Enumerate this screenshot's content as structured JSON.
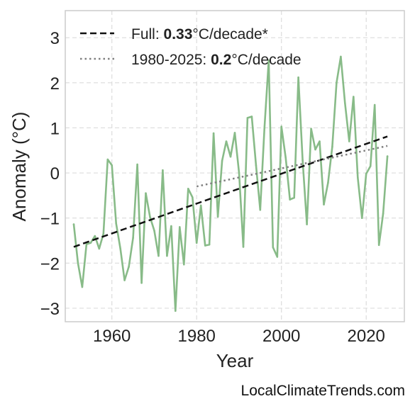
{
  "chart_data": {
    "type": "line",
    "title": "",
    "xlabel": "Year",
    "ylabel": "Anomaly (°C)",
    "xlim": [
      1949,
      2029
    ],
    "ylim": [
      -3.3,
      3.6
    ],
    "xticks": [
      1960,
      1980,
      2000,
      2020
    ],
    "yticks": [
      -3,
      -2,
      -1,
      0,
      1,
      2,
      3
    ],
    "grid": true,
    "legend_position": "top-left",
    "series": [
      {
        "color": "#88bb88",
        "x": [
          1951,
          1952,
          1953,
          1954,
          1955,
          1956,
          1957,
          1958,
          1959,
          1960,
          1961,
          1962,
          1963,
          1964,
          1965,
          1966,
          1967,
          1968,
          1969,
          1970,
          1971,
          1972,
          1973,
          1974,
          1975,
          1976,
          1977,
          1978,
          1979,
          1980,
          1981,
          1982,
          1983,
          1984,
          1985,
          1986,
          1987,
          1988,
          1989,
          1990,
          1991,
          1992,
          1993,
          1994,
          1995,
          1996,
          1997,
          1998,
          1999,
          2000,
          2001,
          2002,
          2003,
          2004,
          2005,
          2006,
          2007,
          2008,
          2009,
          2010,
          2011,
          2012,
          2013,
          2014,
          2015,
          2016,
          2017,
          2018,
          2019,
          2020,
          2021,
          2022,
          2023,
          2024,
          2025
        ],
        "y": [
          -1.14,
          -2.0,
          -2.53,
          -1.58,
          -1.55,
          -1.4,
          -1.68,
          -1.35,
          0.3,
          0.17,
          -1.12,
          -1.68,
          -2.38,
          -2.08,
          -1.44,
          0.19,
          -2.44,
          -0.45,
          -0.98,
          -1.28,
          -1.84,
          0.06,
          -1.84,
          -1.18,
          -3.06,
          -1.2,
          -2.03,
          -0.35,
          -0.54,
          -1.55,
          -0.72,
          -1.61,
          -1.59,
          0.88,
          -0.97,
          0.27,
          0.7,
          0.36,
          0.89,
          0.0,
          -1.64,
          1.22,
          1.25,
          0.17,
          -0.82,
          1.0,
          2.5,
          -1.65,
          -1.86,
          1.03,
          0.34,
          -0.59,
          -0.55,
          2.12,
          0.28,
          -1.14,
          0.98,
          0.52,
          0.7,
          -0.7,
          -0.22,
          0.58,
          2.0,
          2.58,
          1.55,
          0.7,
          1.69,
          -0.1,
          -1.0,
          -0.02,
          0.15,
          1.51,
          -1.6,
          -0.9,
          0.37
        ]
      }
    ],
    "trends": [
      {
        "label_prefix": "Full: ",
        "value": "0.33",
        "label_suffix": "°C/decade*",
        "style": "dashed",
        "color": "#111111",
        "x": [
          1951,
          2025
        ],
        "y": [
          -1.64,
          0.81
        ]
      },
      {
        "label_prefix": "1980-2025: ",
        "value": "0.2",
        "label_suffix": "°C/decade",
        "style": "dotted",
        "color": "#808080",
        "x": [
          1980,
          2025
        ],
        "y": [
          -0.3,
          0.6
        ]
      }
    ]
  },
  "watermark": "LocalClimateTrends.com"
}
